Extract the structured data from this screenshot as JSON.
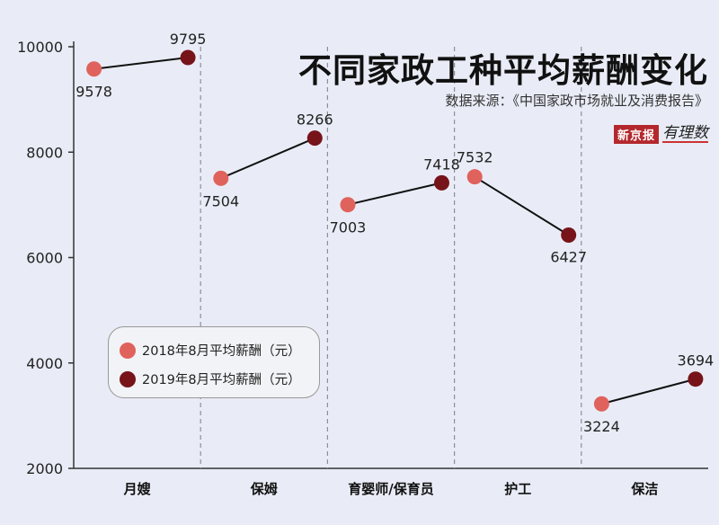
{
  "title": "不同家政工种平均薪酬变化",
  "subtitle": "数据来源：《中国家政市场就业及消费报告》",
  "brand": {
    "box": "新京报",
    "script": "有理数"
  },
  "colors": {
    "y2018": "#e0625c",
    "y2019": "#76141a",
    "line": "#111111",
    "divider": "#8a8f99"
  },
  "chart_data": {
    "type": "line",
    "categories": [
      "月嫂",
      "保姆",
      "育婴师/保育员",
      "护工",
      "保洁"
    ],
    "series": [
      {
        "name": "2018年8月平均薪酬（元）",
        "values": [
          9578,
          7504,
          7003,
          7532,
          3224
        ]
      },
      {
        "name": "2019年8月平均薪酬（元）",
        "values": [
          9795,
          8266,
          7418,
          6427,
          3694
        ]
      }
    ],
    "yticks": [
      "10000",
      "8000",
      "6000",
      "4000",
      "2000"
    ],
    "ylim": [
      2000,
      10000
    ],
    "legend_position": "lower-left",
    "grid": false
  }
}
